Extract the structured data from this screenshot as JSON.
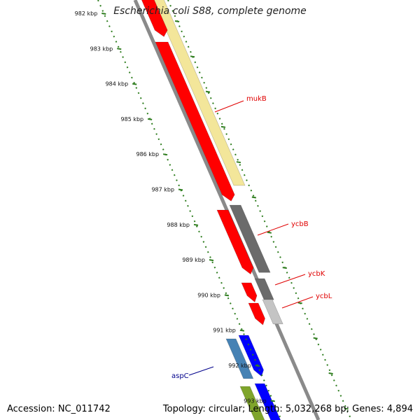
{
  "header": {
    "title": "Escherichia coli S88, complete genome"
  },
  "footer": {
    "accession": "Accession: NC_011742",
    "info": "Topology: circular; Length: 5,032,268 bp; Genes: 4,894"
  },
  "map": {
    "ticks": [
      {
        "label": "982 kbp"
      },
      {
        "label": "983 kbp"
      },
      {
        "label": "984 kbp"
      },
      {
        "label": "985 kbp"
      },
      {
        "label": "986 kbp"
      },
      {
        "label": "987 kbp"
      },
      {
        "label": "988 kbp"
      },
      {
        "label": "989 kbp"
      },
      {
        "label": "990 kbp"
      },
      {
        "label": "991 kbp"
      },
      {
        "label": "992 kbp"
      },
      {
        "label": "993 kbp"
      }
    ],
    "gene_labels": [
      {
        "name": "mukB",
        "color": "#e00000"
      },
      {
        "name": "ycbB",
        "color": "#e00000"
      },
      {
        "name": "ycbK",
        "color": "#e00000"
      },
      {
        "name": "ycbL",
        "color": "#e00000"
      },
      {
        "name": "aspC",
        "color": "#00008b"
      }
    ],
    "colors": {
      "cds_forward": "#ff0000",
      "cds_alt": "#ff0000",
      "pale_feature": "#f3e69a",
      "dark_feature": "#6b6b6b",
      "light_feature": "#c4c4c4",
      "blue_steel": "#4682b4",
      "blue": "#0000ff",
      "olive": "#7fa52c",
      "backbone": "#8a8a8a",
      "dotted_track": "#2e7d1e"
    }
  }
}
